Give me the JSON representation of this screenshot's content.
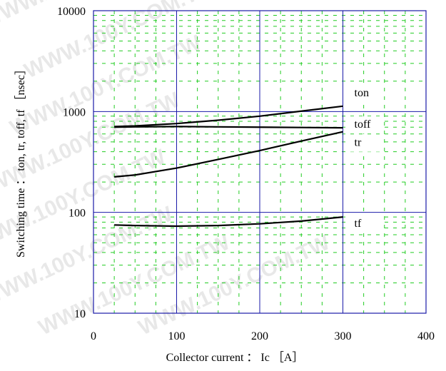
{
  "chart_data": {
    "type": "line",
    "xlabel": "Collector current ： Ic ［A］",
    "ylabel": "Switching time ： ton, tr, toff, tf ［nsec］",
    "xlim": [
      0,
      400
    ],
    "ylim": [
      10,
      10000
    ],
    "y_scale": "log",
    "x_ticks": [
      0,
      100,
      200,
      300,
      400
    ],
    "y_ticks": [
      10,
      100,
      1000,
      10000
    ],
    "x_tick_labels": [
      "0",
      "100",
      "200",
      "300",
      "400"
    ],
    "y_tick_labels": [
      "10",
      "100",
      "1000",
      "10000"
    ],
    "grid": true,
    "series": [
      {
        "name": "ton",
        "x": [
          25,
          50,
          100,
          150,
          200,
          250,
          300
        ],
        "y": [
          710,
          720,
          760,
          820,
          900,
          1010,
          1130
        ]
      },
      {
        "name": "toff",
        "x": [
          25,
          50,
          100,
          150,
          200,
          250,
          300
        ],
        "y": [
          700,
          705,
          710,
          705,
          700,
          695,
          690
        ]
      },
      {
        "name": "tr",
        "x": [
          25,
          50,
          100,
          150,
          200,
          250,
          300
        ],
        "y": [
          225,
          235,
          275,
          335,
          410,
          510,
          630
        ]
      },
      {
        "name": "tf",
        "x": [
          25,
          50,
          100,
          150,
          200,
          250,
          300
        ],
        "y": [
          75,
          74,
          73,
          74,
          77,
          82,
          90
        ]
      }
    ],
    "watermark": "WWW.100Y.COM.TW"
  },
  "colors": {
    "major_grid": "#1a1aa8",
    "minor_grid": "#22cc22",
    "series_line": "#000000",
    "frame": "#1a1aa8"
  }
}
